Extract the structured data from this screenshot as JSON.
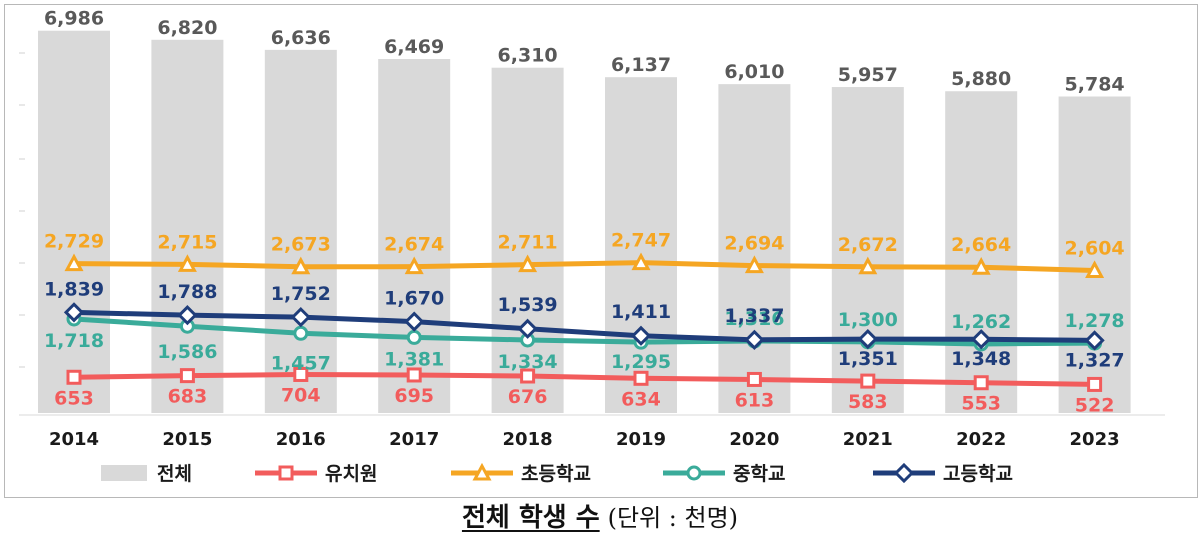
{
  "caption": {
    "title": "전체 학생 수",
    "unit": "(단위 : 천명)"
  },
  "chart_data": {
    "type": "bar+line",
    "categories": [
      "2014",
      "2015",
      "2016",
      "2017",
      "2018",
      "2019",
      "2020",
      "2021",
      "2022",
      "2023"
    ],
    "ylim": [
      0,
      7200
    ],
    "grid": false,
    "legend": "bottom",
    "series": [
      {
        "name": "전체",
        "kind": "bar",
        "color": "#d9d9d9",
        "label_color": "#595959",
        "values": [
          6986,
          6820,
          6636,
          6469,
          6310,
          6137,
          6010,
          5957,
          5880,
          5784
        ]
      },
      {
        "name": "유치원",
        "kind": "line",
        "marker": "square",
        "color": "#f25c5c",
        "values": [
          653,
          683,
          704,
          695,
          676,
          634,
          613,
          583,
          553,
          522
        ]
      },
      {
        "name": "초등학교",
        "kind": "line",
        "marker": "triangle",
        "color": "#f5a623",
        "values": [
          2729,
          2715,
          2673,
          2674,
          2711,
          2747,
          2694,
          2672,
          2664,
          2604
        ]
      },
      {
        "name": "중학교",
        "kind": "line",
        "marker": "circle",
        "color": "#3aab9a",
        "values": [
          1718,
          1586,
          1457,
          1381,
          1334,
          1295,
          1316,
          1300,
          1262,
          1278
        ]
      },
      {
        "name": "고등학교",
        "kind": "line",
        "marker": "diamond",
        "color": "#1f3d7a",
        "values": [
          1839,
          1788,
          1752,
          1670,
          1539,
          1411,
          1337,
          1351,
          1348,
          1327
        ]
      }
    ],
    "data_labels": {
      "전체": [
        "6,986",
        "6,820",
        "6,636",
        "6,469",
        "6,310",
        "6,137",
        "6,010",
        "5,957",
        "5,880",
        "5,784"
      ],
      "유치원": [
        "653",
        "683",
        "704",
        "695",
        "676",
        "634",
        "613",
        "583",
        "553",
        "522"
      ],
      "초등학교": [
        "2,729",
        "2,715",
        "2,673",
        "2,674",
        "2,711",
        "2,747",
        "2,694",
        "2,672",
        "2,664",
        "2,604"
      ],
      "중학교": [
        "1,718",
        "1,586",
        "1,457",
        "1,381",
        "1,334",
        "1,295",
        "1,316",
        "1,300",
        "1,262",
        "1,278"
      ],
      "고등학교": [
        "1,839",
        "1,788",
        "1,752",
        "1,670",
        "1,539",
        "1,411",
        "1,337",
        "1,351",
        "1,348",
        "1,327"
      ]
    }
  }
}
